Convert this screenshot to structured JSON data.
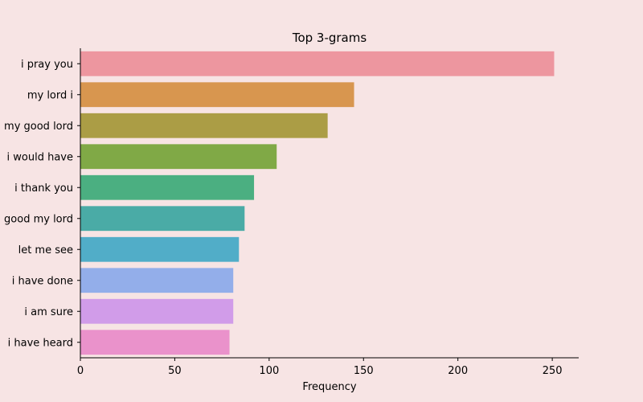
{
  "chart_data": {
    "type": "bar",
    "orientation": "horizontal",
    "title": "Top 3-grams",
    "xlabel": "Frequency",
    "ylabel": "",
    "xlim": [
      0,
      264
    ],
    "xticks": [
      0,
      50,
      100,
      150,
      200,
      250
    ],
    "grid": false,
    "legend": "none",
    "categories": [
      "i pray you",
      "my lord i",
      "my good lord",
      "i would have",
      "i thank you",
      "good my lord",
      "let me see",
      "i have done",
      "i am sure",
      "i have heard"
    ],
    "values": [
      251,
      145,
      131,
      104,
      92,
      87,
      84,
      81,
      81,
      79
    ],
    "colors": [
      "#ed969f",
      "#d8964f",
      "#ab9d45",
      "#80a946",
      "#4baf81",
      "#4aaba6",
      "#51adc8",
      "#93aeea",
      "#d19ce9",
      "#ea92cb"
    ]
  },
  "background": "#f7e4e4"
}
